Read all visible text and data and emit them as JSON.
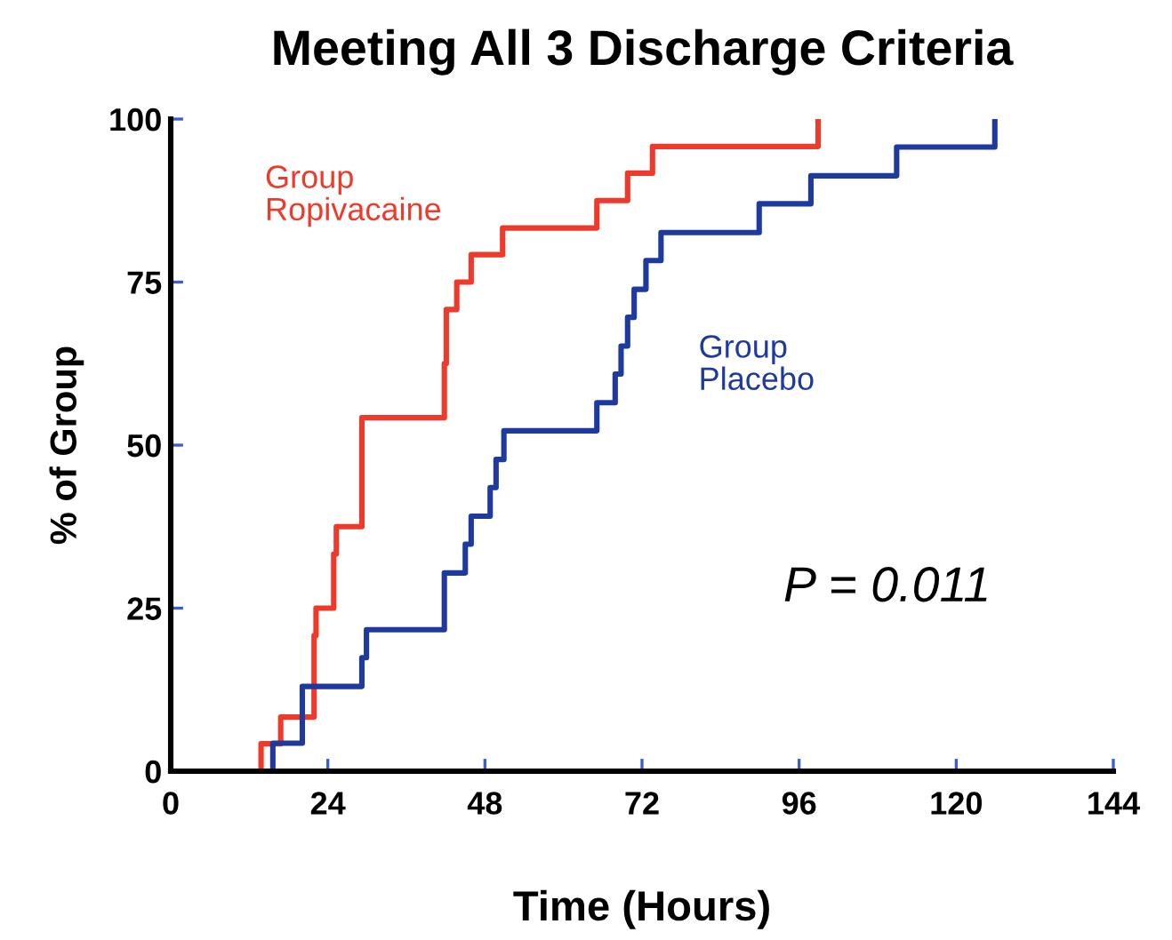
{
  "chart_data": {
    "type": "step",
    "title": "Meeting All 3 Discharge Criteria",
    "xlabel": "Time (Hours)",
    "ylabel": "% of Group",
    "xlim": [
      0,
      144
    ],
    "ylim": [
      0,
      100
    ],
    "xticks": [
      0,
      24,
      48,
      72,
      96,
      120,
      144
    ],
    "yticks": [
      0,
      25,
      50,
      75,
      100
    ],
    "grid": false,
    "legend": false,
    "series": [
      {
        "name": "Group\nRopivacaine",
        "color": "#ee3a2a",
        "x": [
          13.8,
          13.8,
          16.8,
          21.9,
          22.2,
          24.9,
          25.3,
          29.2,
          41.8,
          42.1,
          43.7,
          45.9,
          50.7,
          65.1,
          69.8,
          73.6,
          98.9
        ],
        "values": [
          0,
          4.2,
          8.3,
          20.8,
          25.0,
          33.3,
          37.5,
          54.2,
          62.5,
          70.8,
          75.0,
          79.2,
          83.3,
          87.5,
          91.7,
          95.8,
          100
        ]
      },
      {
        "name": "Group\nPlacebo",
        "color": "#1f3a9e",
        "x": [
          15.6,
          15.6,
          20.1,
          29.2,
          29.9,
          41.8,
          45.0,
          45.9,
          48.8,
          49.7,
          50.9,
          65.1,
          67.9,
          68.8,
          69.8,
          70.8,
          72.6,
          74.9,
          89.9,
          97.8,
          110.9,
          125.9
        ],
        "values": [
          0,
          4.3,
          13.0,
          17.4,
          21.7,
          30.4,
          34.8,
          39.1,
          43.5,
          47.8,
          52.2,
          56.5,
          60.9,
          65.2,
          69.6,
          73.9,
          78.3,
          82.6,
          87.0,
          91.3,
          95.7,
          100
        ]
      }
    ],
    "annotations": [
      "P = 0.011"
    ]
  }
}
